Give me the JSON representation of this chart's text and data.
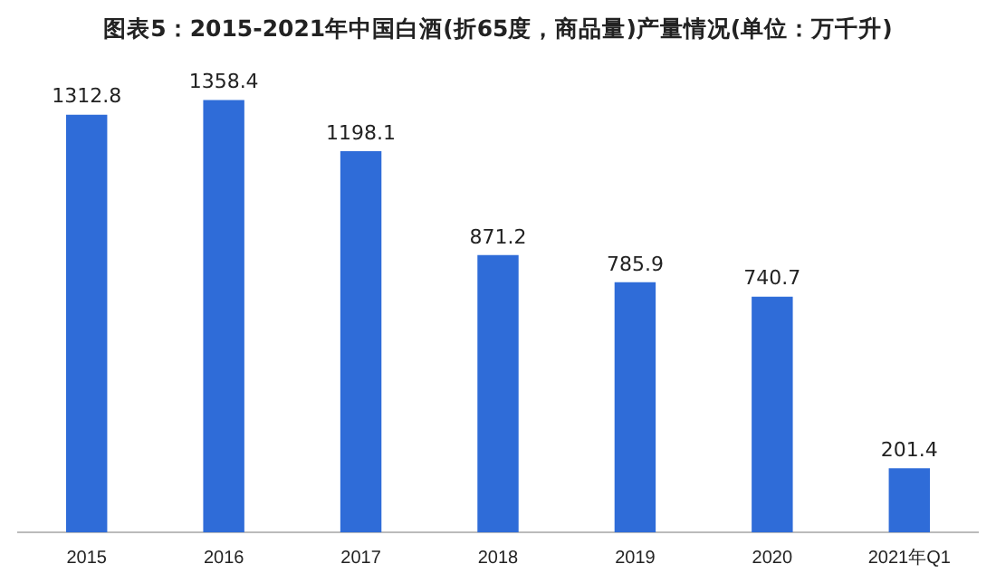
{
  "chart_data": {
    "type": "bar",
    "title": "图表5：2015-2021年中国白酒(折65度，商品量)产量情况(单位：万千升)",
    "categories": [
      "2015",
      "2016",
      "2017",
      "2018",
      "2019",
      "2020",
      "2021年Q1"
    ],
    "values": [
      1312.8,
      1358.4,
      1198.1,
      871.2,
      785.9,
      740.7,
      201.4
    ],
    "color": "#2f6cd8",
    "data_labels": true,
    "grid": false,
    "legend": false,
    "tick_labels": "x"
  }
}
